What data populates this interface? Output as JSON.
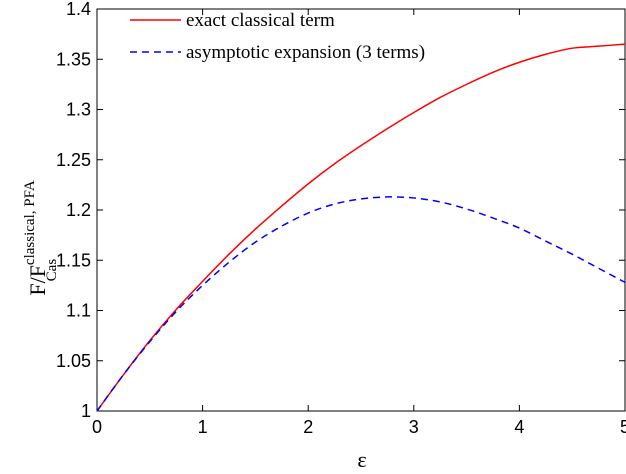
{
  "chart_data": {
    "type": "line",
    "title": "",
    "xlabel": "ε",
    "ylabel": {
      "base": "F/F",
      "superscript": "classical, PFA",
      "subscript": "Cas"
    },
    "xlim": [
      0,
      5
    ],
    "ylim": [
      1,
      1.4
    ],
    "xticks": [
      0,
      1,
      2,
      3,
      4,
      5
    ],
    "xtick_labels": [
      "0",
      "1",
      "2",
      "3",
      "4",
      "5"
    ],
    "yticks": [
      1,
      1.05,
      1.1,
      1.15,
      1.2,
      1.25,
      1.3,
      1.35,
      1.4
    ],
    "ytick_labels": [
      "1",
      "1.05",
      "1.1",
      "1.15",
      "1.2",
      "1.25",
      "1.3",
      "1.35",
      "1.4"
    ],
    "grid": false,
    "legend_position": "top-left",
    "x": [
      0,
      0.25,
      0.5,
      0.75,
      1,
      1.25,
      1.5,
      1.75,
      2,
      2.25,
      2.5,
      2.75,
      3,
      3.25,
      3.5,
      3.75,
      4,
      4.25,
      4.5,
      4.75,
      5
    ],
    "series": [
      {
        "name": "exact classical term",
        "color": "#ff0000",
        "style": "solid",
        "values": [
          1.0,
          1.036,
          1.07,
          1.101,
          1.129,
          1.156,
          1.181,
          1.204,
          1.226,
          1.246,
          1.264,
          1.281,
          1.297,
          1.312,
          1.325,
          1.337,
          1.347,
          1.355,
          1.361,
          1.363,
          1.365
        ]
      },
      {
        "name": "asymptotic expansion (3 terms)",
        "color": "#0000ff",
        "style": "dashed",
        "values": [
          1.0,
          1.036,
          1.069,
          1.099,
          1.125,
          1.148,
          1.168,
          1.184,
          1.197,
          1.206,
          1.211,
          1.213,
          1.212,
          1.208,
          1.201,
          1.192,
          1.182,
          1.169,
          1.156,
          1.142,
          1.128
        ]
      }
    ]
  }
}
